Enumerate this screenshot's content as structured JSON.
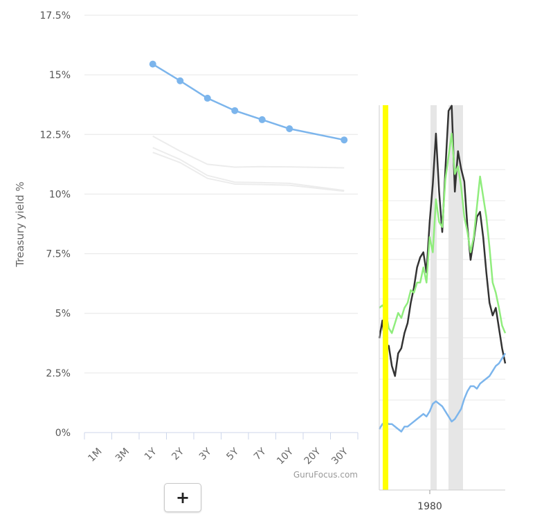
{
  "chart_data": [
    {
      "type": "line",
      "ylabel": "Treasury yield %",
      "xlabel": "",
      "categories": [
        "1M",
        "3M",
        "1Y",
        "2Y",
        "3Y",
        "5Y",
        "7Y",
        "10Y",
        "20Y",
        "30Y"
      ],
      "y_ticks": [
        "0%",
        "2.5%",
        "5%",
        "7.5%",
        "10%",
        "12.5%",
        "15%",
        "17.5%"
      ],
      "ylim": [
        0,
        17.5
      ],
      "grid": true,
      "series": [
        {
          "values": [
            null,
            null,
            15.45,
            14.75,
            14.02,
            13.5,
            13.12,
            12.74,
            null,
            12.27
          ],
          "color": "#7cb5ec",
          "markers": true
        },
        {
          "values": [
            null,
            null,
            12.43,
            11.8,
            11.25,
            11.13,
            11.15,
            11.14,
            null,
            11.1
          ],
          "color": "#ececec",
          "markers": false
        },
        {
          "values": [
            null,
            null,
            11.95,
            11.45,
            10.78,
            10.5,
            10.48,
            10.45,
            null,
            10.15
          ],
          "color": "#ececec",
          "markers": false
        },
        {
          "values": [
            null,
            null,
            11.75,
            11.32,
            10.66,
            10.42,
            10.4,
            10.37,
            null,
            10.12
          ],
          "color": "#ececec",
          "markers": false
        }
      ],
      "credit": "GuruFocus.com"
    },
    {
      "type": "line",
      "x_tick": "1980",
      "highlight_color": "#ffff00",
      "series": [
        {
          "color": "#333333",
          "y": [
            3.6,
            4.3,
            3.1,
            3.3,
            2.5,
            2.1,
            3.0,
            3.2,
            3.8,
            4.2,
            5.0,
            5.6,
            6.4,
            6.8,
            7.0,
            6.2,
            8.2,
            9.7,
            11.7,
            9.4,
            7.8,
            10.3,
            12.6,
            12.8,
            9.4,
            11.0,
            10.3,
            9.8,
            8.0,
            6.7,
            7.5,
            8.4,
            8.6,
            7.6,
            6.2,
            5.0,
            4.5,
            4.8,
            4.0,
            3.2,
            2.6
          ]
        },
        {
          "color": "#90ed7d",
          "y": [
            4.8,
            4.9,
            4.7,
            4.0,
            3.8,
            4.2,
            4.6,
            4.4,
            4.8,
            5.0,
            5.5,
            5.4,
            5.8,
            5.8,
            6.4,
            5.8,
            7.6,
            7.0,
            9.1,
            8.2,
            8.0,
            9.9,
            10.8,
            11.7,
            10.1,
            10.4,
            9.6,
            8.4,
            7.8,
            7.0,
            7.6,
            8.8,
            10.0,
            9.2,
            8.4,
            7.2,
            5.8,
            5.4,
            4.8,
            4.1,
            3.8
          ]
        },
        {
          "color": "#7cb5ec",
          "y": [
            0.0,
            0.2,
            0.3,
            0.2,
            0.2,
            0.1,
            0.0,
            -0.1,
            0.1,
            0.1,
            0.2,
            0.3,
            0.4,
            0.5,
            0.6,
            0.5,
            0.7,
            1.0,
            1.1,
            1.0,
            0.9,
            0.7,
            0.5,
            0.3,
            0.4,
            0.6,
            0.8,
            1.2,
            1.5,
            1.7,
            1.7,
            1.6,
            1.8,
            1.9,
            2.0,
            2.1,
            2.3,
            2.5,
            2.6,
            2.8,
            3.0
          ]
        }
      ]
    }
  ],
  "ui": {
    "add_label": "+"
  }
}
